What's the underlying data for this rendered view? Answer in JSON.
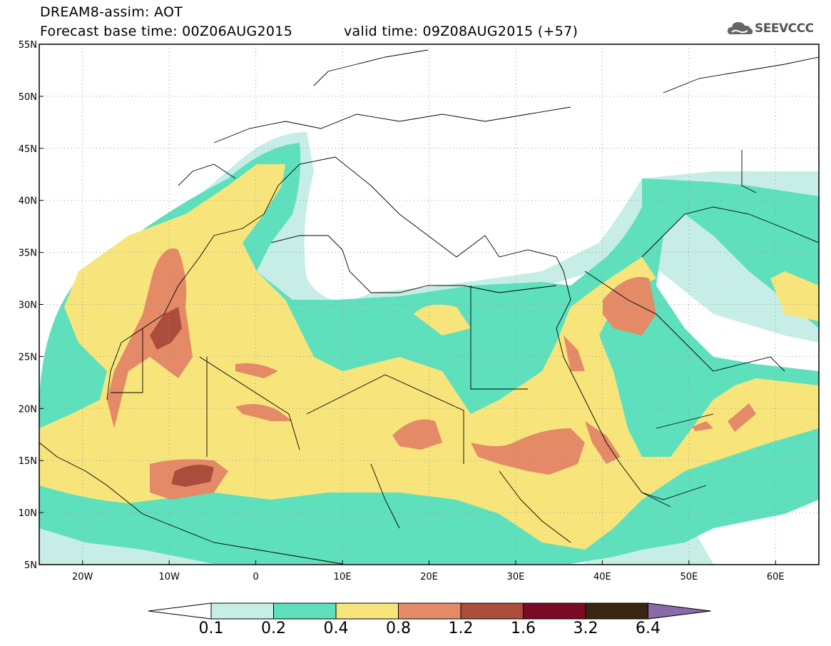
{
  "header": {
    "line1": "DREAM8-assim: AOT",
    "line2": "Forecast base time: 00Z06AUG2015",
    "valid": "valid time: 09Z08AUG2015 (+57)",
    "logo_text": "SEEVCCC"
  },
  "map": {
    "lon_range": [
      -25,
      65
    ],
    "lat_range": [
      5,
      55
    ],
    "lon_ticks": [
      "20W",
      "10W",
      "0",
      "10E",
      "20E",
      "30E",
      "40E",
      "50E",
      "60E"
    ],
    "lat_ticks": [
      "55N",
      "50N",
      "45N",
      "40N",
      "35N",
      "30N",
      "25N",
      "20N",
      "15N",
      "10N",
      "5N"
    ],
    "grid": "dotted"
  },
  "legend": {
    "labels": [
      "0.1",
      "0.2",
      "0.4",
      "0.8",
      "1.2",
      "1.6",
      "3.2",
      "6.4"
    ],
    "colors": [
      "#ffffff",
      "#c6eee6",
      "#5ee0bc",
      "#f7e57c",
      "#e48a66",
      "#ac4c3c",
      "#7a0a26",
      "#3a2412",
      "#8a6aa8"
    ]
  }
}
